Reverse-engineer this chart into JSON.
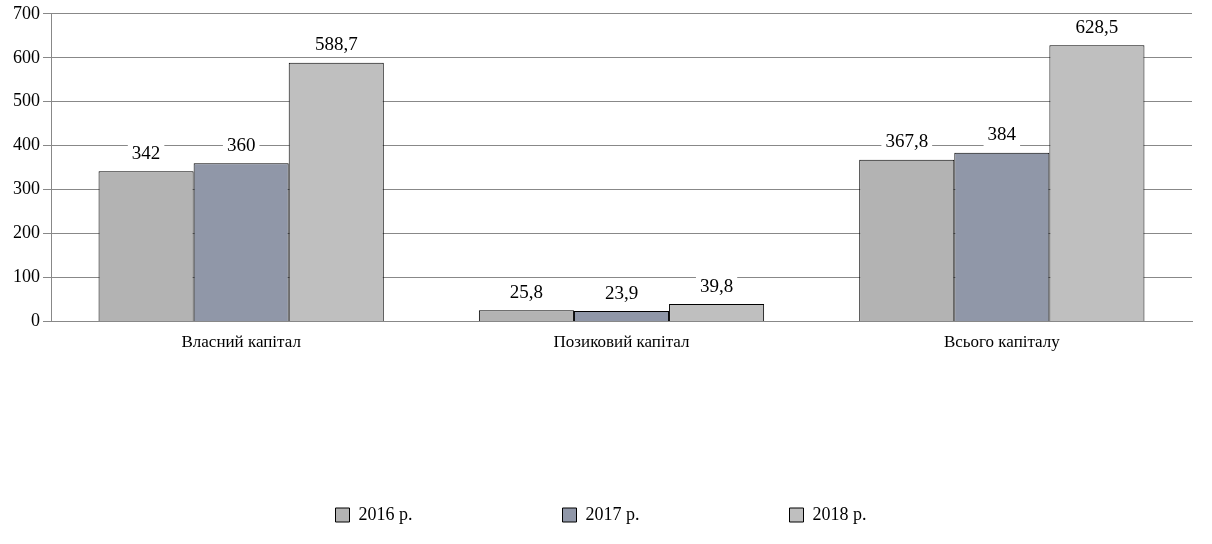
{
  "chart_data": {
    "type": "bar",
    "categories": [
      "Власний капітал",
      "Позиковий капітал",
      "Всього капіталу"
    ],
    "series": [
      {
        "name": "2016 р.",
        "color": "#b3b3b3",
        "values": [
          342,
          25.8,
          367.8
        ],
        "value_labels": [
          "342",
          "25,8",
          "367,8"
        ]
      },
      {
        "name": "2017 р.",
        "color": "#9097a8",
        "values": [
          360,
          23.9,
          384
        ],
        "value_labels": [
          "360",
          "23,9",
          "384"
        ]
      },
      {
        "name": "2018 р.",
        "color": "#bfbfbf",
        "values": [
          588.7,
          39.8,
          628.5
        ],
        "value_labels": [
          "588,7",
          "39,8",
          "628,5"
        ]
      }
    ],
    "ylim": [
      0,
      700
    ],
    "yticks": [
      0,
      100,
      200,
      300,
      400,
      500,
      600,
      700
    ],
    "grid": "y",
    "legend": "bottom"
  }
}
